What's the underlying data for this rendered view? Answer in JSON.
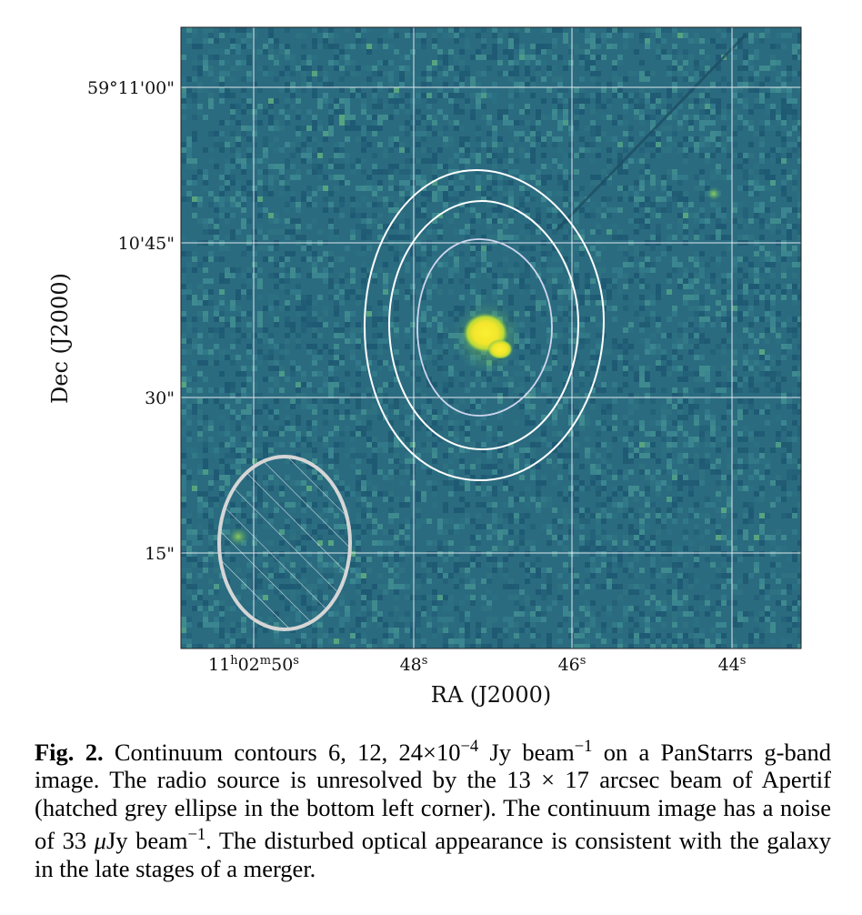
{
  "figure": {
    "y_ticks": [
      "59°11'00\"",
      "10'45\"",
      "30\"",
      "15\""
    ],
    "x_ticks": [
      {
        "h": "11",
        "h_unit": "h",
        "m": "02",
        "m_unit": "m",
        "s": "50",
        "s_unit": "s"
      },
      {
        "s": "48",
        "s_unit": "s"
      },
      {
        "s": "46",
        "s_unit": "s"
      },
      {
        "s": "44",
        "s_unit": "s"
      }
    ],
    "xlabel": "RA (J2000)",
    "ylabel": "Dec (J2000)",
    "colors": {
      "background": "#2a6b80",
      "source": "#f5e92a",
      "contour": "#ffffff",
      "inner_contour": "#cfd6ec",
      "beam": "#d6d6d6",
      "grid": "#ffffff"
    }
  },
  "caption": {
    "label": "Fig. 2.",
    "segments": [
      {
        "t": " Continuum contours 6, 12, 24×10"
      },
      {
        "t": "−4",
        "sup": true
      },
      {
        "t": " Jy beam"
      },
      {
        "t": "−1",
        "sup": true
      },
      {
        "t": " on a PanStarrs g-band image. The radio source is unresolved by the 13 × 17 arcsec beam of Apertif (hatched grey ellipse in the bottom left corner). The continuum image has a noise of 33 "
      },
      {
        "t": "μ",
        "it": true
      },
      {
        "t": "Jy beam"
      },
      {
        "t": "−1",
        "sup": true
      },
      {
        "t": ". The disturbed optical appearance is consistent with the galaxy in the late stages of a merger."
      }
    ]
  }
}
